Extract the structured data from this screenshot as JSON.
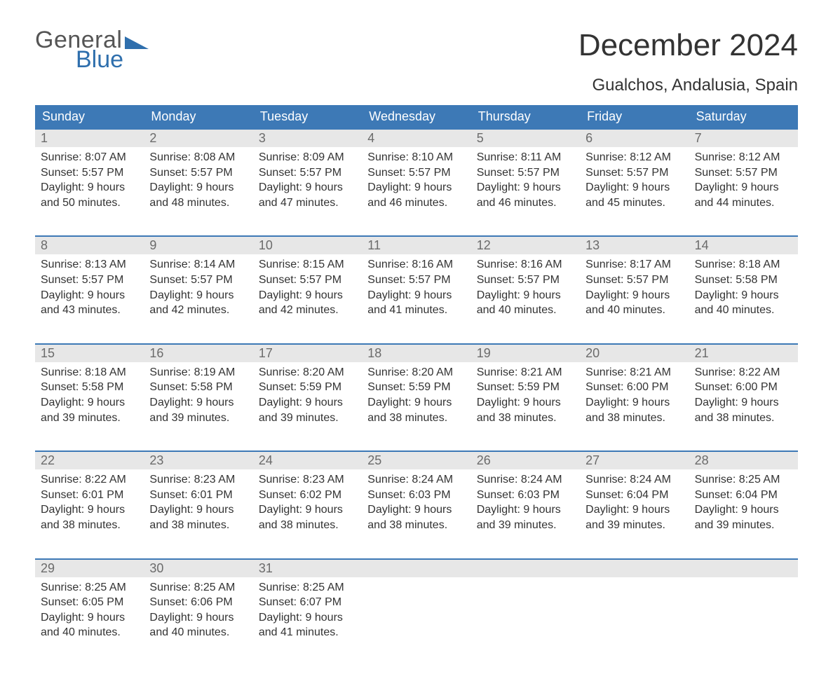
{
  "logo": {
    "text1": "General",
    "text2": "Blue",
    "tri_color": "#2f6fad",
    "text1_color": "#555555"
  },
  "title": "December 2024",
  "subtitle": "Gualchos, Andalusia, Spain",
  "colors": {
    "header_bg": "#3d79b6",
    "header_text": "#ffffff",
    "daynum_bg": "#e7e7e7",
    "daynum_text": "#6b6b6b",
    "body_text": "#333333",
    "week_border": "#3d79b6",
    "page_bg": "#ffffff"
  },
  "typography": {
    "title_fontsize": 44,
    "subtitle_fontsize": 24,
    "dow_fontsize": 18,
    "daynum_fontsize": 18,
    "body_fontsize": 16
  },
  "days_of_week": [
    "Sunday",
    "Monday",
    "Tuesday",
    "Wednesday",
    "Thursday",
    "Friday",
    "Saturday"
  ],
  "weeks": [
    [
      {
        "num": "1",
        "sunrise": "Sunrise: 8:07 AM",
        "sunset": "Sunset: 5:57 PM",
        "day1": "Daylight: 9 hours",
        "day2": "and 50 minutes."
      },
      {
        "num": "2",
        "sunrise": "Sunrise: 8:08 AM",
        "sunset": "Sunset: 5:57 PM",
        "day1": "Daylight: 9 hours",
        "day2": "and 48 minutes."
      },
      {
        "num": "3",
        "sunrise": "Sunrise: 8:09 AM",
        "sunset": "Sunset: 5:57 PM",
        "day1": "Daylight: 9 hours",
        "day2": "and 47 minutes."
      },
      {
        "num": "4",
        "sunrise": "Sunrise: 8:10 AM",
        "sunset": "Sunset: 5:57 PM",
        "day1": "Daylight: 9 hours",
        "day2": "and 46 minutes."
      },
      {
        "num": "5",
        "sunrise": "Sunrise: 8:11 AM",
        "sunset": "Sunset: 5:57 PM",
        "day1": "Daylight: 9 hours",
        "day2": "and 46 minutes."
      },
      {
        "num": "6",
        "sunrise": "Sunrise: 8:12 AM",
        "sunset": "Sunset: 5:57 PM",
        "day1": "Daylight: 9 hours",
        "day2": "and 45 minutes."
      },
      {
        "num": "7",
        "sunrise": "Sunrise: 8:12 AM",
        "sunset": "Sunset: 5:57 PM",
        "day1": "Daylight: 9 hours",
        "day2": "and 44 minutes."
      }
    ],
    [
      {
        "num": "8",
        "sunrise": "Sunrise: 8:13 AM",
        "sunset": "Sunset: 5:57 PM",
        "day1": "Daylight: 9 hours",
        "day2": "and 43 minutes."
      },
      {
        "num": "9",
        "sunrise": "Sunrise: 8:14 AM",
        "sunset": "Sunset: 5:57 PM",
        "day1": "Daylight: 9 hours",
        "day2": "and 42 minutes."
      },
      {
        "num": "10",
        "sunrise": "Sunrise: 8:15 AM",
        "sunset": "Sunset: 5:57 PM",
        "day1": "Daylight: 9 hours",
        "day2": "and 42 minutes."
      },
      {
        "num": "11",
        "sunrise": "Sunrise: 8:16 AM",
        "sunset": "Sunset: 5:57 PM",
        "day1": "Daylight: 9 hours",
        "day2": "and 41 minutes."
      },
      {
        "num": "12",
        "sunrise": "Sunrise: 8:16 AM",
        "sunset": "Sunset: 5:57 PM",
        "day1": "Daylight: 9 hours",
        "day2": "and 40 minutes."
      },
      {
        "num": "13",
        "sunrise": "Sunrise: 8:17 AM",
        "sunset": "Sunset: 5:57 PM",
        "day1": "Daylight: 9 hours",
        "day2": "and 40 minutes."
      },
      {
        "num": "14",
        "sunrise": "Sunrise: 8:18 AM",
        "sunset": "Sunset: 5:58 PM",
        "day1": "Daylight: 9 hours",
        "day2": "and 40 minutes."
      }
    ],
    [
      {
        "num": "15",
        "sunrise": "Sunrise: 8:18 AM",
        "sunset": "Sunset: 5:58 PM",
        "day1": "Daylight: 9 hours",
        "day2": "and 39 minutes."
      },
      {
        "num": "16",
        "sunrise": "Sunrise: 8:19 AM",
        "sunset": "Sunset: 5:58 PM",
        "day1": "Daylight: 9 hours",
        "day2": "and 39 minutes."
      },
      {
        "num": "17",
        "sunrise": "Sunrise: 8:20 AM",
        "sunset": "Sunset: 5:59 PM",
        "day1": "Daylight: 9 hours",
        "day2": "and 39 minutes."
      },
      {
        "num": "18",
        "sunrise": "Sunrise: 8:20 AM",
        "sunset": "Sunset: 5:59 PM",
        "day1": "Daylight: 9 hours",
        "day2": "and 38 minutes."
      },
      {
        "num": "19",
        "sunrise": "Sunrise: 8:21 AM",
        "sunset": "Sunset: 5:59 PM",
        "day1": "Daylight: 9 hours",
        "day2": "and 38 minutes."
      },
      {
        "num": "20",
        "sunrise": "Sunrise: 8:21 AM",
        "sunset": "Sunset: 6:00 PM",
        "day1": "Daylight: 9 hours",
        "day2": "and 38 minutes."
      },
      {
        "num": "21",
        "sunrise": "Sunrise: 8:22 AM",
        "sunset": "Sunset: 6:00 PM",
        "day1": "Daylight: 9 hours",
        "day2": "and 38 minutes."
      }
    ],
    [
      {
        "num": "22",
        "sunrise": "Sunrise: 8:22 AM",
        "sunset": "Sunset: 6:01 PM",
        "day1": "Daylight: 9 hours",
        "day2": "and 38 minutes."
      },
      {
        "num": "23",
        "sunrise": "Sunrise: 8:23 AM",
        "sunset": "Sunset: 6:01 PM",
        "day1": "Daylight: 9 hours",
        "day2": "and 38 minutes."
      },
      {
        "num": "24",
        "sunrise": "Sunrise: 8:23 AM",
        "sunset": "Sunset: 6:02 PM",
        "day1": "Daylight: 9 hours",
        "day2": "and 38 minutes."
      },
      {
        "num": "25",
        "sunrise": "Sunrise: 8:24 AM",
        "sunset": "Sunset: 6:03 PM",
        "day1": "Daylight: 9 hours",
        "day2": "and 38 minutes."
      },
      {
        "num": "26",
        "sunrise": "Sunrise: 8:24 AM",
        "sunset": "Sunset: 6:03 PM",
        "day1": "Daylight: 9 hours",
        "day2": "and 39 minutes."
      },
      {
        "num": "27",
        "sunrise": "Sunrise: 8:24 AM",
        "sunset": "Sunset: 6:04 PM",
        "day1": "Daylight: 9 hours",
        "day2": "and 39 minutes."
      },
      {
        "num": "28",
        "sunrise": "Sunrise: 8:25 AM",
        "sunset": "Sunset: 6:04 PM",
        "day1": "Daylight: 9 hours",
        "day2": "and 39 minutes."
      }
    ],
    [
      {
        "num": "29",
        "sunrise": "Sunrise: 8:25 AM",
        "sunset": "Sunset: 6:05 PM",
        "day1": "Daylight: 9 hours",
        "day2": "and 40 minutes."
      },
      {
        "num": "30",
        "sunrise": "Sunrise: 8:25 AM",
        "sunset": "Sunset: 6:06 PM",
        "day1": "Daylight: 9 hours",
        "day2": "and 40 minutes."
      },
      {
        "num": "31",
        "sunrise": "Sunrise: 8:25 AM",
        "sunset": "Sunset: 6:07 PM",
        "day1": "Daylight: 9 hours",
        "day2": "and 41 minutes."
      },
      {
        "num": "",
        "sunrise": "",
        "sunset": "",
        "day1": "",
        "day2": ""
      },
      {
        "num": "",
        "sunrise": "",
        "sunset": "",
        "day1": "",
        "day2": ""
      },
      {
        "num": "",
        "sunrise": "",
        "sunset": "",
        "day1": "",
        "day2": ""
      },
      {
        "num": "",
        "sunrise": "",
        "sunset": "",
        "day1": "",
        "day2": ""
      }
    ]
  ]
}
